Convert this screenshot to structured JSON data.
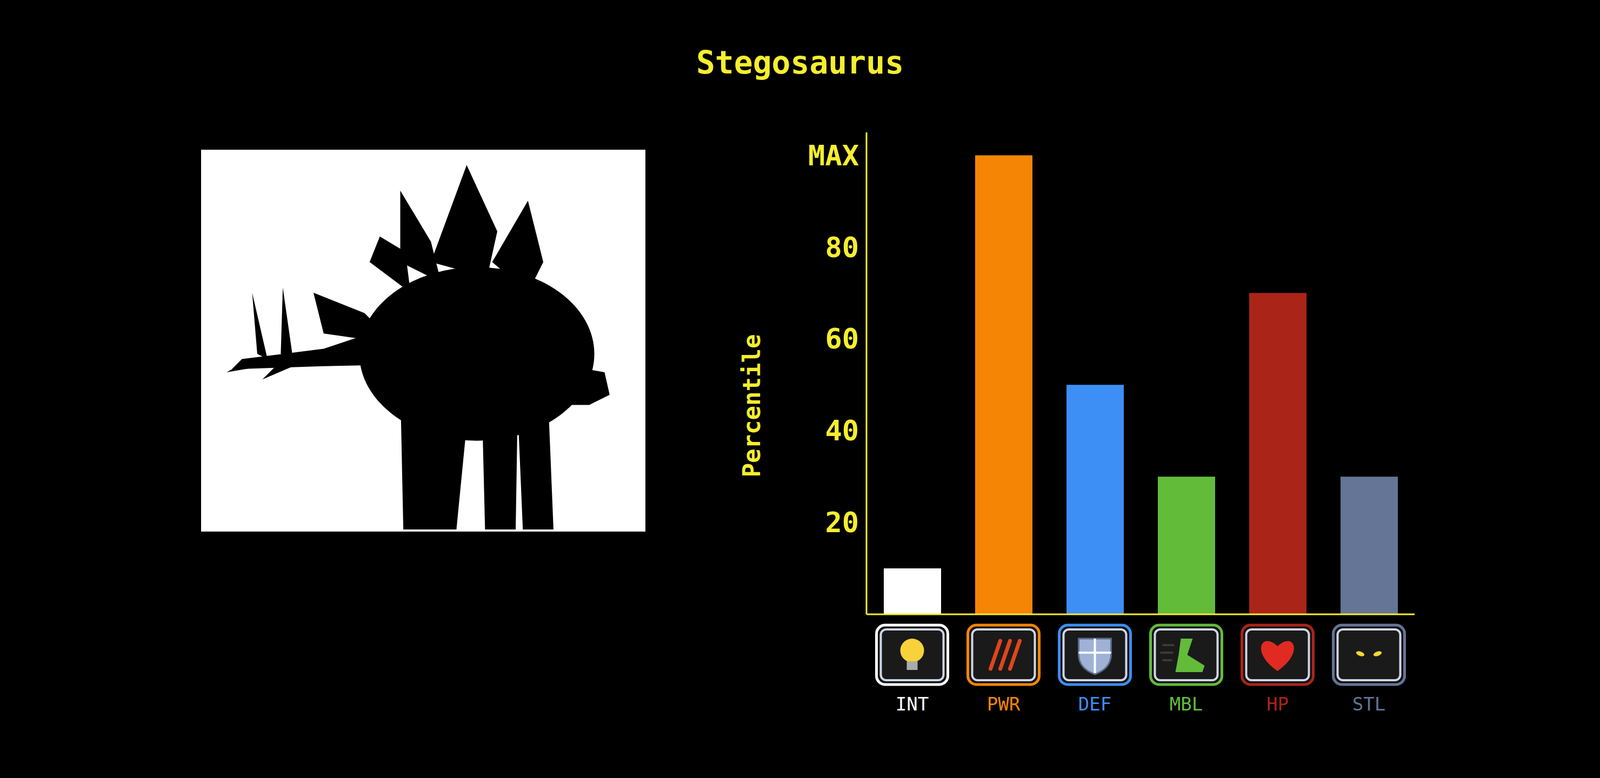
{
  "chart_data": {
    "type": "bar",
    "title": "Stegosaurus",
    "y_label": "Percentile",
    "categories": [
      "INT",
      "PWR",
      "DEF",
      "MBL",
      "HP",
      "STL"
    ],
    "values": [
      10,
      100,
      50,
      30,
      70,
      30
    ],
    "colors": [
      "#ffffff",
      "#f58505",
      "#3d8ef5",
      "#63bb3a",
      "#ab2418",
      "#647595"
    ],
    "ylim": [
      0,
      105
    ],
    "yticks": [
      20,
      40,
      60,
      80,
      {
        "value": 100,
        "label": "MAX"
      }
    ],
    "grid": false
  }
}
